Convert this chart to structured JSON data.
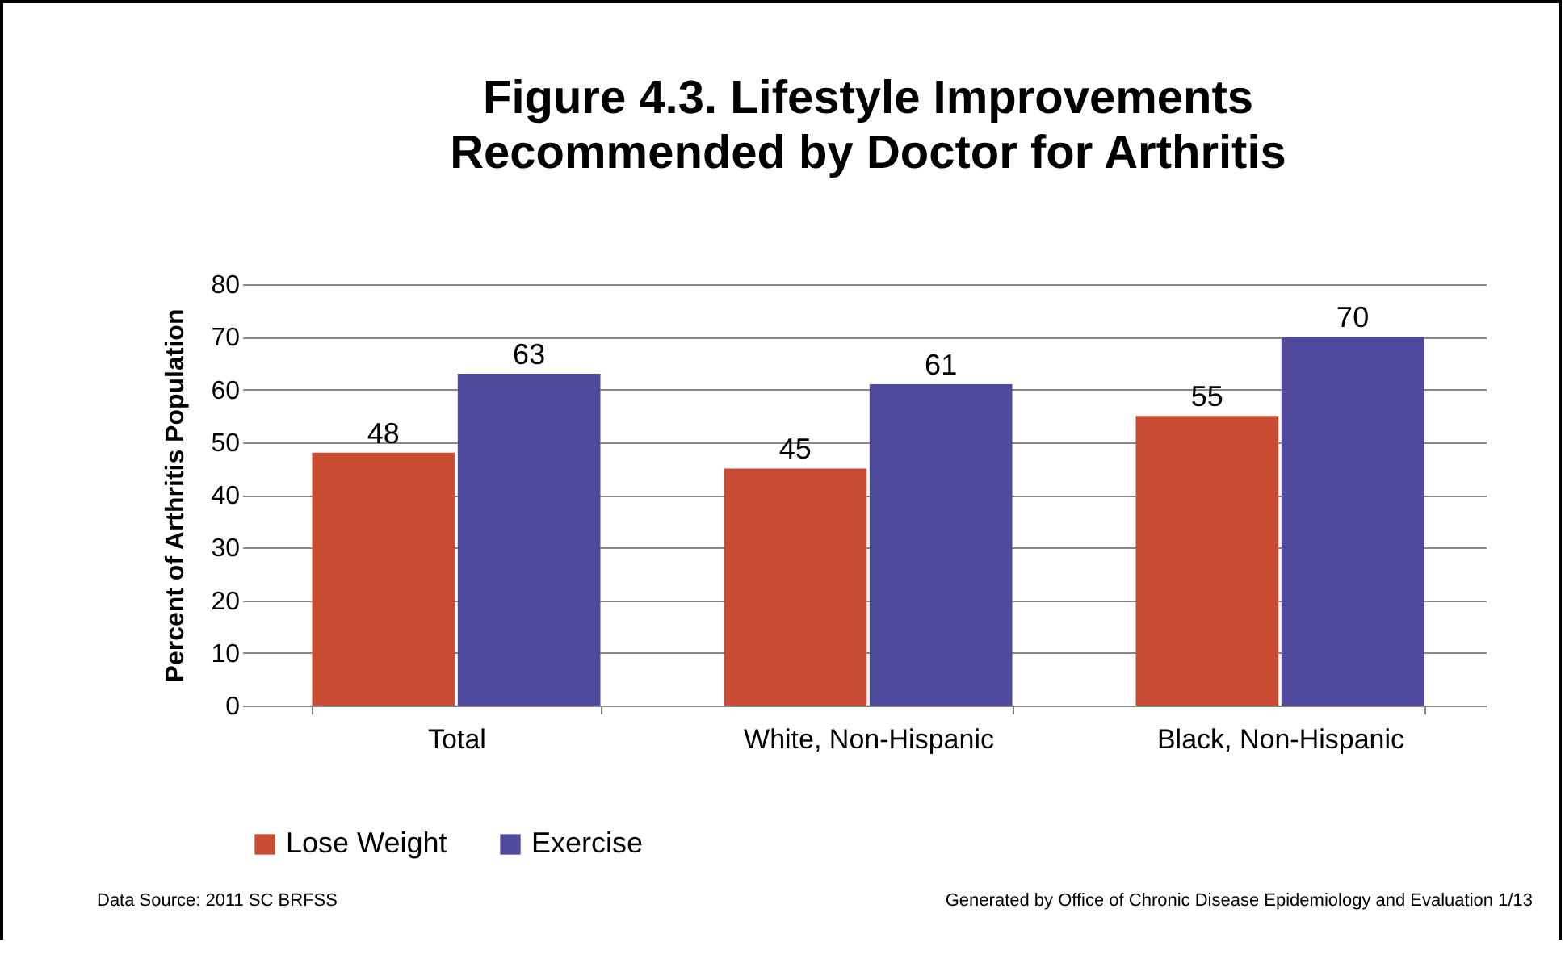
{
  "chart_data": {
    "type": "bar",
    "title": "Figure 4.3.  Lifestyle Improvements\nRecommended by Doctor for Arthritis",
    "ylabel": "Percent of Arthritis Population",
    "categories": [
      "Total",
      "White, Non-Hispanic",
      "Black, Non-Hispanic"
    ],
    "series": [
      {
        "name": "Lose Weight",
        "color": "#c84b32",
        "values": [
          48,
          45,
          55
        ]
      },
      {
        "name": "Exercise",
        "color": "#4f4b9c",
        "values": [
          63,
          61,
          70
        ]
      }
    ],
    "ylim": [
      0,
      80
    ],
    "yticks": [
      0,
      10,
      20,
      30,
      40,
      50,
      60,
      70,
      80
    ],
    "grid": "y",
    "legend": "bottom",
    "data_labels": true,
    "annotations": [
      "Data Source:  2011 SC BRFSS",
      "Generated by Office of Chronic Disease Epidemiology and Evaluation 1/13"
    ]
  }
}
